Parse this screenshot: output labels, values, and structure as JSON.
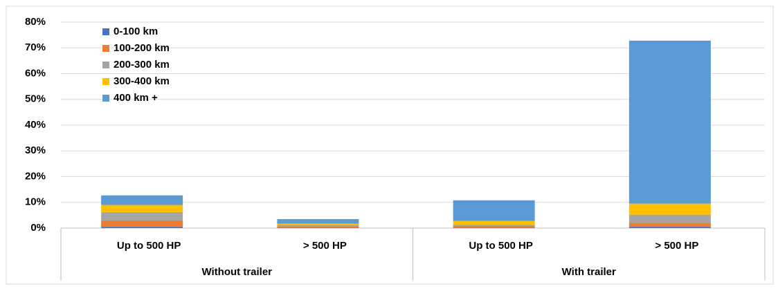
{
  "chart_data": {
    "type": "stacked-bar",
    "categories": [
      "Up to 500 HP",
      "> 500 HP",
      "Up to 500 HP",
      "> 500 HP"
    ],
    "groups": [
      "Without trailer",
      "With trailer"
    ],
    "series": [
      {
        "name": "0-100 km",
        "color": "#4472c4",
        "values": [
          0.5,
          0.2,
          0.2,
          0.5
        ]
      },
      {
        "name": "100-200 km",
        "color": "#ed7d31",
        "values": [
          2.5,
          0.5,
          0.6,
          1.5
        ]
      },
      {
        "name": "200-300 km",
        "color": "#a5a5a5",
        "values": [
          3.2,
          0.5,
          0.5,
          3.2
        ]
      },
      {
        "name": "300-400 km",
        "color": "#ffc000",
        "values": [
          2.8,
          0.5,
          1.5,
          4.3
        ]
      },
      {
        "name": "400 km +",
        "color": "#5b9bd5",
        "values": [
          3.7,
          1.8,
          8.0,
          63.3
        ]
      }
    ],
    "ylim": [
      0,
      80
    ],
    "yticks": [
      {
        "value": 0,
        "label": "0%"
      },
      {
        "value": 10,
        "label": "10%"
      },
      {
        "value": 20,
        "label": "20%"
      },
      {
        "value": 30,
        "label": "30%"
      },
      {
        "value": 40,
        "label": "40%"
      },
      {
        "value": 50,
        "label": "50%"
      },
      {
        "value": 60,
        "label": "60%"
      },
      {
        "value": 70,
        "label": "70%"
      },
      {
        "value": 80,
        "label": "80%"
      }
    ],
    "grid": true,
    "legend": "top-left"
  }
}
